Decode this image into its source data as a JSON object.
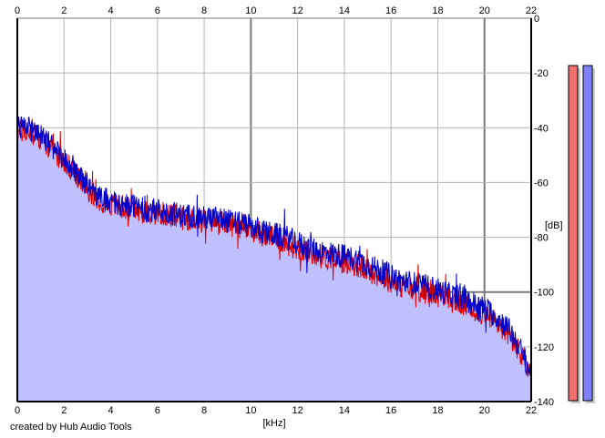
{
  "chart_data": {
    "type": "line",
    "title": "",
    "xlabel": "[kHz]",
    "ylabel": "[dB]",
    "xlim": [
      0,
      22
    ],
    "ylim": [
      -140,
      0
    ],
    "x_ticks": [
      "0",
      "2",
      "4",
      "6",
      "8",
      "10",
      "12",
      "14",
      "16",
      "18",
      "20",
      "22"
    ],
    "y_ticks": [
      "0",
      "-20",
      "-40",
      "-60",
      "-80",
      "-100",
      "-120",
      "-140"
    ],
    "grid": true,
    "legend": "none",
    "fill_color": "#c0c0ff",
    "series": [
      {
        "color": "#e00000",
        "x": [
          0,
          0.3,
          0.6,
          1.0,
          1.5,
          2.0,
          2.5,
          3.0,
          3.5,
          4.0,
          4.5,
          5.0,
          5.5,
          6.0,
          6.5,
          7.0,
          7.5,
          8.0,
          8.5,
          9.0,
          9.5,
          10.0,
          10.5,
          11.0,
          11.5,
          12.0,
          12.5,
          13.0,
          13.5,
          14.0,
          14.5,
          15.0,
          15.5,
          16.0,
          16.5,
          17.0,
          17.5,
          18.0,
          18.5,
          19.0,
          19.5,
          20.0,
          20.5,
          21.0,
          21.5,
          22.0
        ],
        "y": [
          -42,
          -41,
          -42,
          -44,
          -48,
          -52,
          -57,
          -62,
          -66,
          -68,
          -69,
          -70,
          -71,
          -71,
          -72,
          -73,
          -73,
          -74,
          -74,
          -75,
          -76,
          -77,
          -79,
          -80,
          -82,
          -84,
          -85,
          -87,
          -88,
          -89,
          -90,
          -92,
          -94,
          -96,
          -98,
          -99,
          -100,
          -101,
          -103,
          -104,
          -106,
          -108,
          -111,
          -115,
          -122,
          -131
        ]
      },
      {
        "color": "#0000cc",
        "x": [
          0,
          0.3,
          0.6,
          1.0,
          1.5,
          2.0,
          2.5,
          3.0,
          3.5,
          4.0,
          4.5,
          5.0,
          5.5,
          6.0,
          6.5,
          7.0,
          7.5,
          8.0,
          8.5,
          9.0,
          9.5,
          10.0,
          10.5,
          11.0,
          11.5,
          12.0,
          12.5,
          13.0,
          13.5,
          14.0,
          14.5,
          15.0,
          15.5,
          16.0,
          16.5,
          17.0,
          17.5,
          18.0,
          18.5,
          19.0,
          19.5,
          20.0,
          20.5,
          21.0,
          21.5,
          22.0
        ],
        "y": [
          -40,
          -39,
          -41,
          -43,
          -47,
          -51,
          -56,
          -61,
          -65,
          -67,
          -68,
          -69,
          -70,
          -70,
          -71,
          -72,
          -72,
          -73,
          -73,
          -74,
          -75,
          -76,
          -78,
          -79,
          -80,
          -82,
          -84,
          -85,
          -86,
          -87,
          -88,
          -90,
          -92,
          -94,
          -96,
          -97,
          -98,
          -99,
          -101,
          -102,
          -104,
          -106,
          -109,
          -113,
          -120,
          -130
        ]
      }
    ],
    "meters": [
      {
        "color": "#f07070",
        "level": 0.0
      },
      {
        "color": "#8080ff",
        "level": 0.0
      }
    ]
  },
  "credit": "created by Hub Audio Tools"
}
